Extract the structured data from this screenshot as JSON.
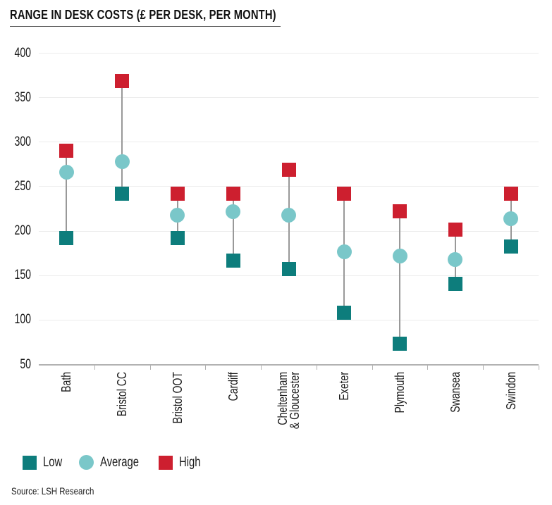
{
  "title": "RANGE IN DESK COSTS (£ PER DESK, PER MONTH)",
  "source": "Source: LSH Research",
  "colors": {
    "low": "#0d7d7c",
    "average": "#7ac7c9",
    "high": "#cd1f2f",
    "range_line": "#999999",
    "axis": "#b2b2b2",
    "gridline": "#ececec",
    "text": "#1a1a1a"
  },
  "legend": {
    "items": [
      {
        "label": "Low",
        "marker": "square",
        "color": "#0d7d7c"
      },
      {
        "label": "Average",
        "marker": "circle",
        "color": "#7ac7c9"
      },
      {
        "label": "High",
        "marker": "square",
        "color": "#cd1f2f"
      }
    ]
  },
  "chart_data": {
    "type": "scatter",
    "variant": "high-low-average-range-plot",
    "title": "RANGE IN DESK COSTS (£ PER DESK, PER MONTH)",
    "xlabel": "",
    "ylabel": "",
    "categories": [
      "Bath",
      "Bristol CC",
      "Bristol OOT",
      "Cardiff",
      "Cheltenham\n& Gloucester",
      "Exeter",
      "Plymouth",
      "Swansea",
      "Swindon"
    ],
    "series": [
      {
        "name": "Low",
        "marker": "square",
        "color": "#0d7d7c",
        "values": [
          192,
          242,
          192,
          167,
          157,
          108,
          73,
          141,
          183
        ]
      },
      {
        "name": "Average",
        "marker": "circle",
        "color": "#7ac7c9",
        "values": [
          266,
          278,
          218,
          222,
          218,
          177,
          172,
          168,
          214
        ]
      },
      {
        "name": "High",
        "marker": "square",
        "color": "#cd1f2f",
        "values": [
          290,
          369,
          242,
          242,
          269,
          242,
          222,
          202,
          242
        ]
      }
    ],
    "ylim": [
      50,
      400
    ],
    "yticks": [
      50,
      100,
      150,
      200,
      250,
      300,
      350,
      400
    ],
    "grid": true,
    "legend_position": "bottom"
  }
}
